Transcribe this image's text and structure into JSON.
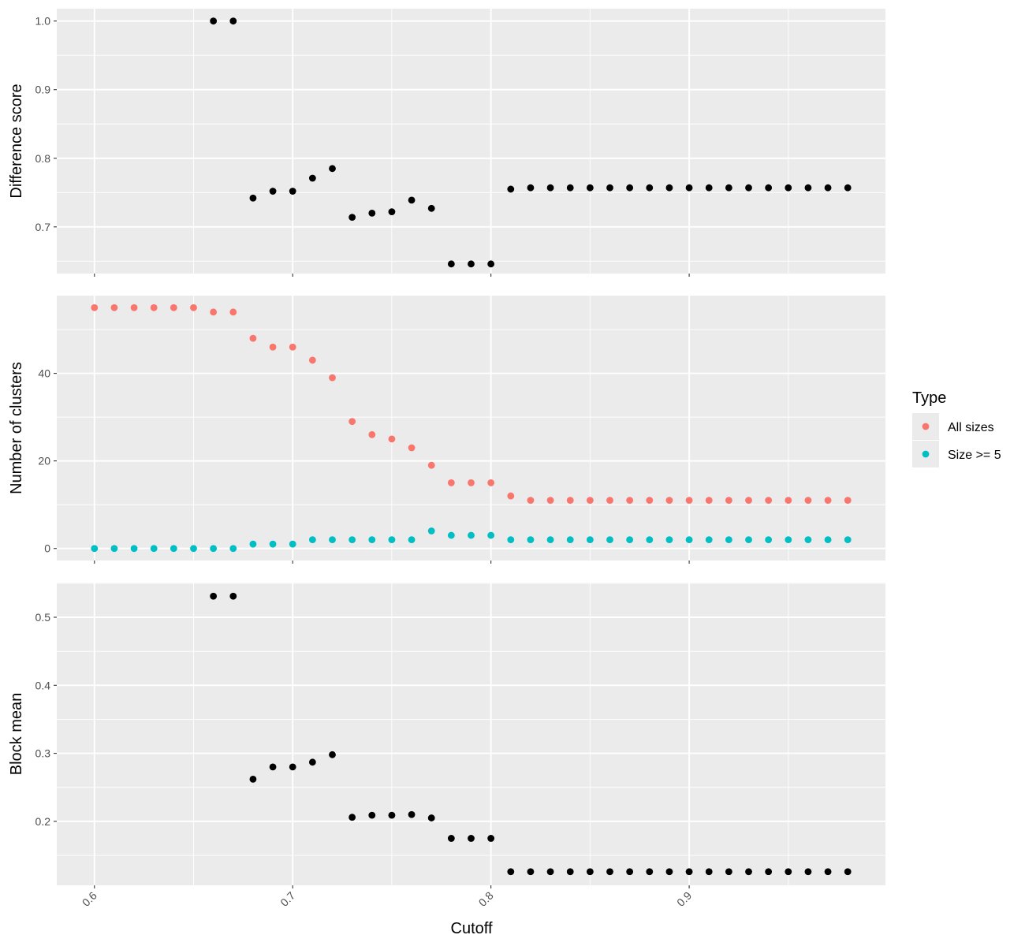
{
  "chart_data": {
    "type": "scatter",
    "x_axis": {
      "label": "Cutoff",
      "ticks": [
        0.6,
        0.7,
        0.8,
        0.9
      ],
      "tick_labels": [
        "0.6",
        "0.7",
        "0.8",
        "0.9"
      ],
      "range": [
        0.581,
        0.999
      ],
      "tick_label_angle": -45
    },
    "x": [
      0.6,
      0.61,
      0.62,
      0.63,
      0.64,
      0.65,
      0.66,
      0.67,
      0.68,
      0.69,
      0.7,
      0.71,
      0.72,
      0.73,
      0.74,
      0.75,
      0.76,
      0.77,
      0.78,
      0.79,
      0.8,
      0.81,
      0.82,
      0.83,
      0.84,
      0.85,
      0.86,
      0.87,
      0.88,
      0.89,
      0.9,
      0.91,
      0.92,
      0.93,
      0.94,
      0.95,
      0.96,
      0.97,
      0.98
    ],
    "panels": [
      {
        "ylabel": "Difference score",
        "ylim": [
          0.632,
          1.018
        ],
        "yticks": [
          0.7,
          0.8,
          0.9,
          1.0
        ],
        "ytick_labels": [
          "0.7",
          "0.8",
          "0.9",
          "1.0"
        ],
        "series": [
          {
            "color": "#000000",
            "values": [
              null,
              null,
              null,
              null,
              null,
              null,
              1.0,
              1.0,
              0.742,
              0.752,
              0.752,
              0.771,
              0.785,
              0.714,
              0.72,
              0.722,
              0.739,
              0.727,
              0.646,
              0.646,
              0.646,
              0.755,
              0.757,
              0.757,
              0.757,
              0.757,
              0.757,
              0.757,
              0.757,
              0.757,
              0.757,
              0.757,
              0.757,
              0.757,
              0.757,
              0.757,
              0.757,
              0.757,
              0.757
            ]
          }
        ]
      },
      {
        "ylabel": "Number of clusters",
        "ylim": [
          -2.75,
          57.75
        ],
        "yticks": [
          0,
          20,
          40
        ],
        "ytick_labels": [
          "0",
          "20",
          "40"
        ],
        "series": [
          {
            "name": "All sizes",
            "color": "#F8766D",
            "values": [
              55,
              55,
              55,
              55,
              55,
              55,
              54,
              54,
              48,
              46,
              46,
              43,
              39,
              29,
              26,
              25,
              23,
              19,
              15,
              15,
              15,
              12,
              11,
              11,
              11,
              11,
              11,
              11,
              11,
              11,
              11,
              11,
              11,
              11,
              11,
              11,
              11,
              11,
              11
            ]
          },
          {
            "name": "Size >= 5",
            "color": "#00BFC4",
            "values": [
              0,
              0,
              0,
              0,
              0,
              0,
              0,
              0,
              1,
              1,
              1,
              2,
              2,
              2,
              2,
              2,
              2,
              4,
              3,
              3,
              3,
              2,
              2,
              2,
              2,
              2,
              2,
              2,
              2,
              2,
              2,
              2,
              2,
              2,
              2,
              2,
              2,
              2,
              2
            ]
          }
        ]
      },
      {
        "ylabel": "Block mean",
        "ylim": [
          0.106,
          0.551
        ],
        "yticks": [
          0.2,
          0.3,
          0.4,
          0.5
        ],
        "ytick_labels": [
          "0.2",
          "0.3",
          "0.4",
          "0.5"
        ],
        "series": [
          {
            "color": "#000000",
            "values": [
              null,
              null,
              null,
              null,
              null,
              null,
              0.531,
              0.531,
              0.262,
              0.28,
              0.28,
              0.287,
              0.298,
              0.206,
              0.209,
              0.209,
              0.21,
              0.205,
              0.175,
              0.175,
              0.175,
              0.126,
              0.126,
              0.126,
              0.126,
              0.126,
              0.126,
              0.126,
              0.126,
              0.126,
              0.126,
              0.126,
              0.126,
              0.126,
              0.126,
              0.126,
              0.126,
              0.126,
              0.126
            ]
          }
        ]
      }
    ],
    "legend": {
      "title": "Type",
      "position": "right",
      "entries": [
        {
          "label": "All sizes",
          "color": "#F8766D"
        },
        {
          "label": "Size >= 5",
          "color": "#00BFC4"
        }
      ]
    },
    "grid": true,
    "panel_background": "#EBEBEB",
    "grid_color": "#FFFFFF"
  }
}
